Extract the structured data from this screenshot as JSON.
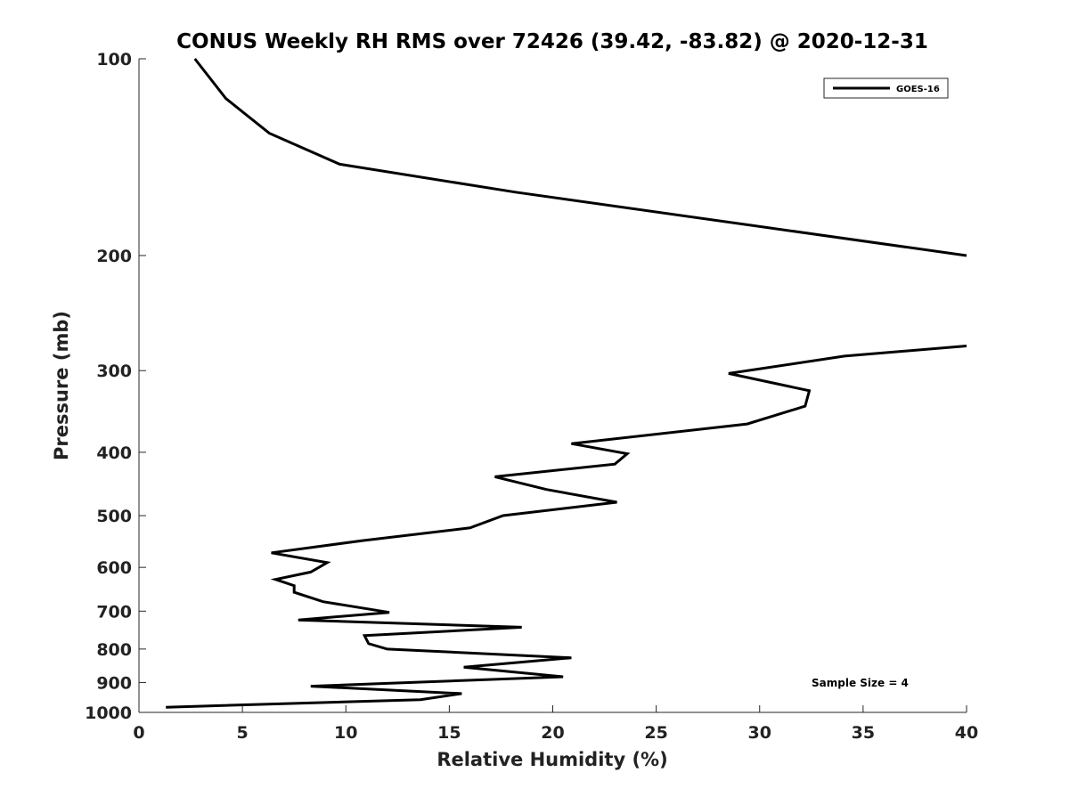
{
  "chart_data": {
    "type": "line",
    "title": "CONUS Weekly RH RMS over 72426 (39.42, -83.82) @ 2020-12-31",
    "xlabel": "Relative Humidity (%)",
    "ylabel": "Pressure (mb)",
    "xlim": [
      0,
      40
    ],
    "ylim": [
      100,
      1000
    ],
    "y_scale": "log",
    "y_inverted": true,
    "x_ticks": [
      "0",
      "5",
      "10",
      "15",
      "20",
      "25",
      "30",
      "35",
      "40"
    ],
    "y_ticks": [
      "100",
      "200",
      "300",
      "400",
      "500",
      "600",
      "700",
      "800",
      "900",
      "1000"
    ],
    "grid": false,
    "legend_position": "top-right",
    "annotation": "Sample Size = 4",
    "series": [
      {
        "name": "GOES-16",
        "color": "#000000",
        "points": [
          [
            2.7,
            100
          ],
          [
            4.2,
            115
          ],
          [
            6.3,
            130
          ],
          [
            9.7,
            145
          ],
          [
            18.2,
            160
          ],
          [
            40.0,
            200
          ],
          [
            null,
            250
          ],
          [
            40.0,
            275
          ],
          [
            34.1,
            285
          ],
          [
            28.5,
            303
          ],
          [
            32.4,
            322
          ],
          [
            32.2,
            340
          ],
          [
            29.4,
            362
          ],
          [
            20.9,
            388
          ],
          [
            23.6,
            402
          ],
          [
            23.0,
            417
          ],
          [
            17.2,
            436
          ],
          [
            19.7,
            456
          ],
          [
            23.1,
            477
          ],
          [
            17.6,
            500
          ],
          [
            16.0,
            522
          ],
          [
            10.8,
            546
          ],
          [
            6.4,
            570
          ],
          [
            9.1,
            590
          ],
          [
            8.3,
            610
          ],
          [
            6.6,
            626
          ],
          [
            7.5,
            640
          ],
          [
            7.5,
            655
          ],
          [
            8.9,
            677
          ],
          [
            12.1,
            703
          ],
          [
            7.7,
            722
          ],
          [
            18.5,
            741
          ],
          [
            10.9,
            763
          ],
          [
            11.1,
            785
          ],
          [
            12.0,
            800
          ],
          [
            20.9,
            825
          ],
          [
            15.7,
            853
          ],
          [
            20.5,
            882
          ],
          [
            8.3,
            912
          ],
          [
            15.6,
            936
          ],
          [
            13.6,
            956
          ],
          [
            1.3,
            982
          ]
        ]
      }
    ]
  }
}
